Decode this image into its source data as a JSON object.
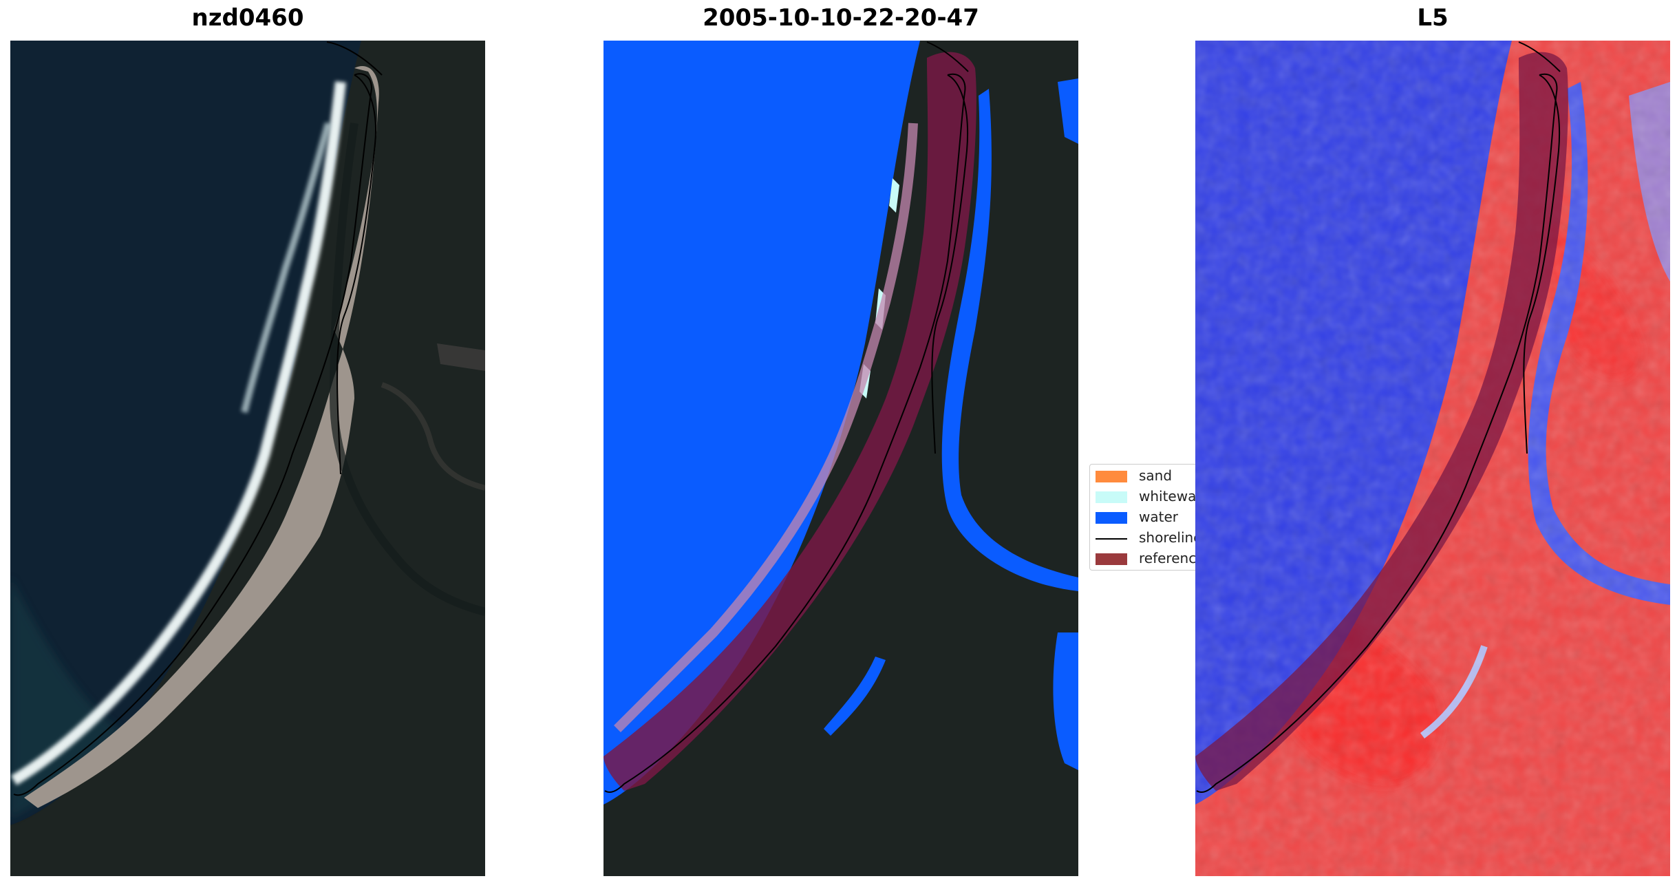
{
  "panels": [
    {
      "title": "nzd0460"
    },
    {
      "title": "2005-10-10-22-20-47"
    },
    {
      "title": "L5"
    }
  ],
  "legend": {
    "items": [
      {
        "label": "sand",
        "color": "#ff8b3d"
      },
      {
        "label": "whitewater",
        "color": "#c8fbf8"
      },
      {
        "label": "water",
        "color": "#0a5cff"
      },
      {
        "label": "shoreline",
        "color": "#000000"
      },
      {
        "label": "reference",
        "color": "#9a3a3d"
      }
    ]
  },
  "colors": {
    "ocean_rgb": "#0f2233",
    "land_rgb": "#1c2422",
    "sand_rgb": "#9e958d",
    "surf_rgb": "#e7f0f0",
    "classified_water": "#0a5cff",
    "reference_buffer": "#7a1846",
    "index_water": "#3340e6",
    "index_land": "#f04646"
  }
}
